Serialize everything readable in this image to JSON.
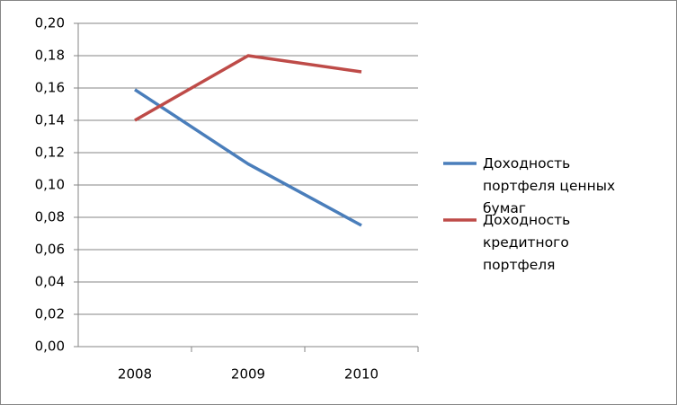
{
  "chart_data": {
    "type": "line",
    "categories": [
      "2008",
      "2009",
      "2010"
    ],
    "series": [
      {
        "name": "Доходность портфеля ценных бумаг",
        "color": "#4a7ebb",
        "values": [
          0.159,
          0.113,
          0.075
        ]
      },
      {
        "name": "Доходность кредитного портфеля",
        "color": "#be4b48",
        "values": [
          0.14,
          0.18,
          0.17
        ]
      }
    ],
    "ylim": [
      0,
      0.2
    ],
    "yticks": [
      {
        "value": 0,
        "label": "0,00"
      },
      {
        "value": 0.02,
        "label": "0,02"
      },
      {
        "value": 0.04,
        "label": "0,04"
      },
      {
        "value": 0.06,
        "label": "0,06"
      },
      {
        "value": 0.08,
        "label": "0,08"
      },
      {
        "value": 0.1,
        "label": "0,10"
      },
      {
        "value": 0.12,
        "label": "0,12"
      },
      {
        "value": 0.14,
        "label": "0,14"
      },
      {
        "value": 0.16,
        "label": "0,16"
      },
      {
        "value": 0.18,
        "label": "0,18"
      },
      {
        "value": 0.2,
        "label": "0,20"
      }
    ],
    "grid": true,
    "legend": "right"
  }
}
